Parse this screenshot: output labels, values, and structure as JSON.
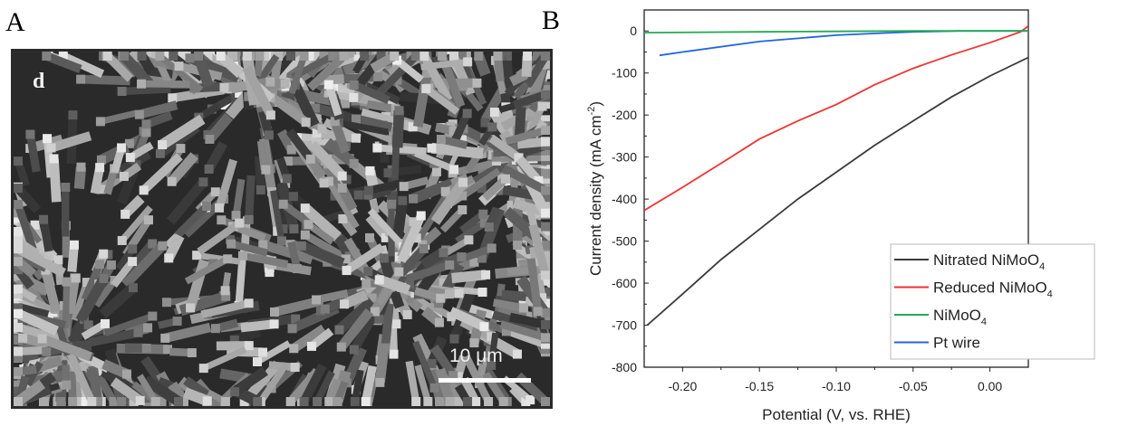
{
  "panels": {
    "a_label": "A",
    "b_label": "B"
  },
  "sem_image": {
    "letter": "d",
    "scale_bar_text": "10 μm"
  },
  "chart_data": {
    "type": "line",
    "xlabel": "Potential (V, vs. RHE)",
    "ylabel": "Current density (mA cm-2)",
    "xlim": [
      -0.225,
      0.025
    ],
    "ylim": [
      -800,
      50
    ],
    "xticks": [
      "-0.20",
      "-0.15",
      "-0.10",
      "-0.05",
      "0.00"
    ],
    "xtick_values": [
      -0.2,
      -0.15,
      -0.1,
      -0.05,
      0.0
    ],
    "yticks": [
      "0",
      "-100",
      "-200",
      "-300",
      "-400",
      "-500",
      "-600",
      "-700",
      "-800"
    ],
    "ytick_values": [
      0,
      -100,
      -200,
      -300,
      -400,
      -500,
      -600,
      -700,
      -800
    ],
    "grid": false,
    "legend_position": "bottom-right",
    "series": [
      {
        "name": "Nitrated NiMoO4",
        "color": "#3a3a3a",
        "x": [
          -0.223,
          -0.2,
          -0.175,
          -0.15,
          -0.125,
          -0.1,
          -0.075,
          -0.05,
          -0.025,
          0.0,
          0.025
        ],
        "y": [
          -700,
          -626,
          -544,
          -472,
          -400,
          -336,
          -272,
          -214,
          -157,
          -107,
          -63
        ]
      },
      {
        "name": "Reduced NiMoO4",
        "color": "#ee3333",
        "x": [
          -0.225,
          -0.2,
          -0.175,
          -0.15,
          -0.125,
          -0.1,
          -0.075,
          -0.05,
          -0.025,
          0.0,
          0.01,
          0.02,
          0.025
        ],
        "y": [
          -427,
          -372,
          -315,
          -257,
          -214,
          -175,
          -128,
          -89,
          -57,
          -28,
          -15,
          -2,
          12
        ]
      },
      {
        "name": "NiMoO4",
        "color": "#22aa55",
        "x": [
          -0.225,
          -0.15,
          -0.1,
          -0.05,
          0.0,
          0.025
        ],
        "y": [
          -4,
          -2,
          -1,
          0,
          0,
          0
        ]
      },
      {
        "name": "Pt wire",
        "color": "#1f66dd",
        "x": [
          -0.215,
          -0.2,
          -0.15,
          -0.1,
          -0.07,
          -0.05,
          -0.02,
          0.0,
          0.025
        ],
        "y": [
          -58,
          -50,
          -25,
          -10,
          -5,
          -2,
          0,
          0,
          0
        ]
      }
    ]
  }
}
